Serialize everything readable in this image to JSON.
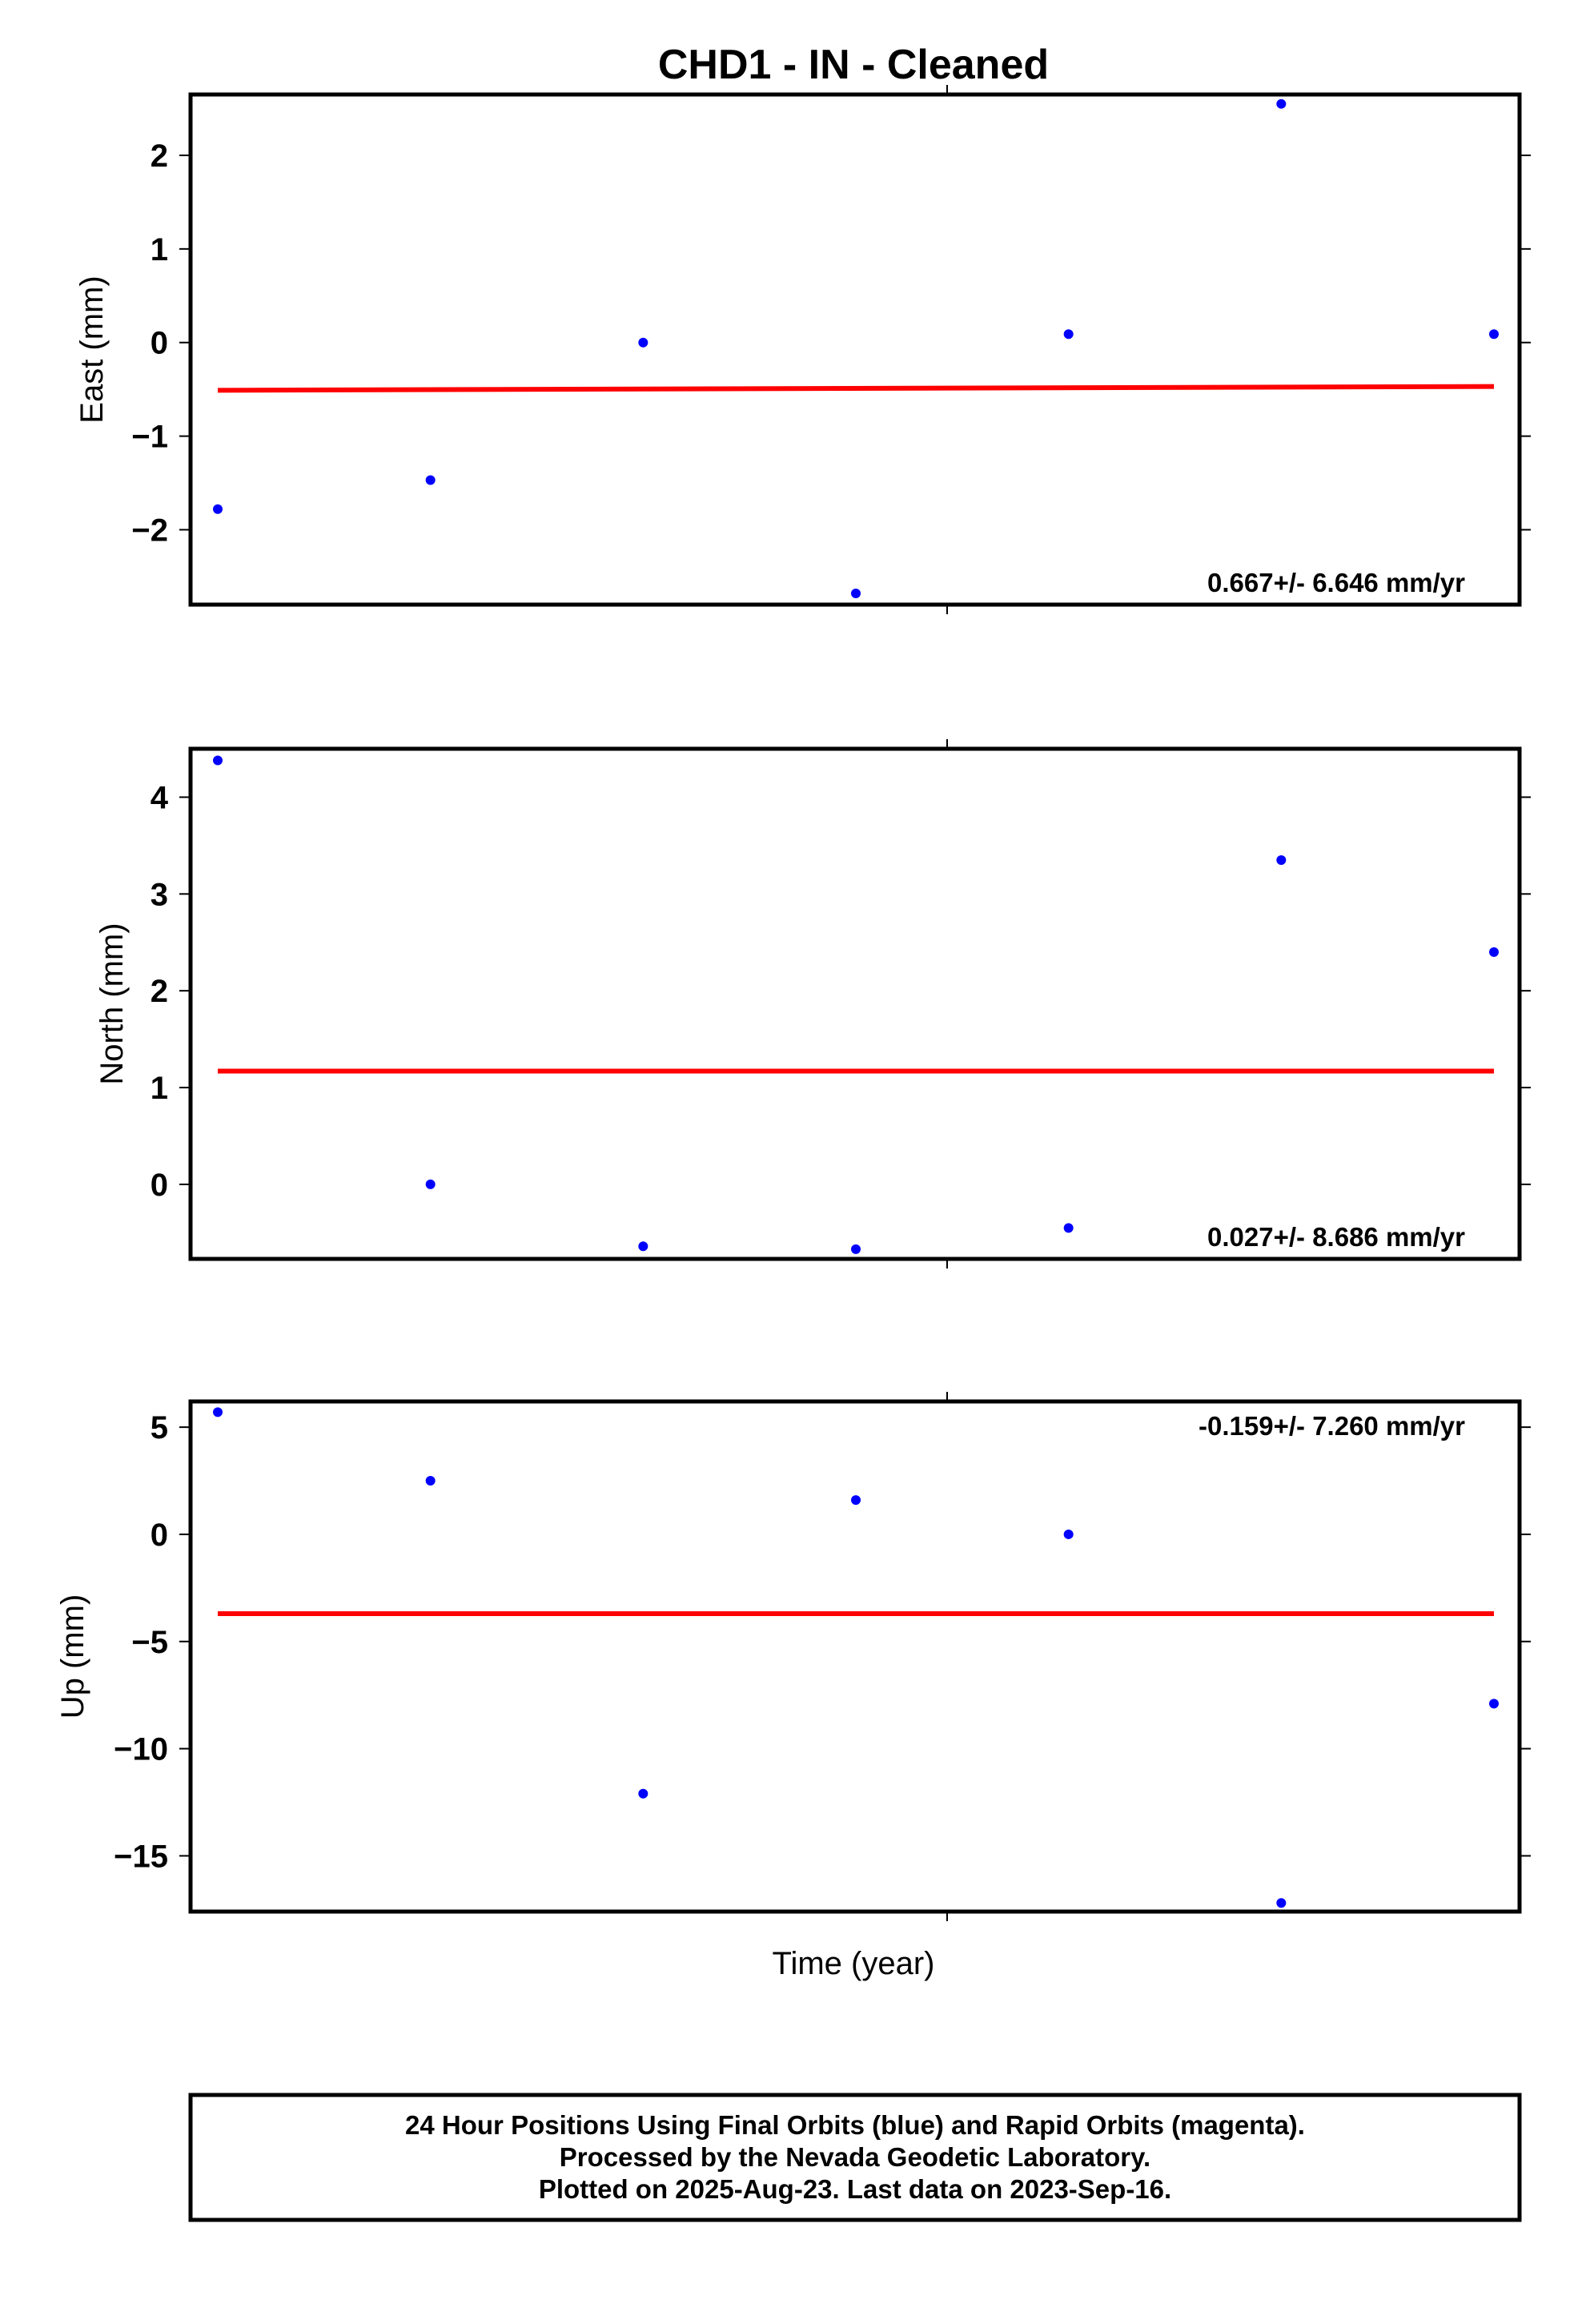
{
  "title": "CHD1  - IN - Cleaned",
  "xlabel": "Time (year)",
  "caption": {
    "line1": "24 Hour Positions Using Final Orbits (blue) and Rapid Orbits (magenta).",
    "line2": "Processed by the Nevada Geodetic Laboratory.",
    "line3": "Plotted on 2025-Aug-23. Last data on 2023-Sep-16."
  },
  "colors": {
    "points": "#0000ff",
    "fit": "#ff0000",
    "frame": "#000000"
  },
  "chart_data": [
    {
      "type": "scatter",
      "ylabel": "East (mm)",
      "rate_label": "0.667+/- 6.646 mm/yr",
      "rate_position": "bottom-right",
      "ylim": [
        -2.8,
        2.65
      ],
      "yticks": [
        -2,
        -1,
        0,
        1,
        2
      ],
      "ytick_labels": [
        "−2",
        "−1",
        "0",
        "1",
        "2"
      ],
      "x": [
        0,
        1,
        2,
        3,
        4,
        5,
        6
      ],
      "y": [
        -1.78,
        -1.47,
        0.0,
        -2.68,
        0.09,
        2.55,
        0.09
      ],
      "fit": {
        "y_start": -0.51,
        "y_end": -0.47
      }
    },
    {
      "type": "scatter",
      "ylabel": "North (mm)",
      "rate_label": "0.027+/- 8.686 mm/yr",
      "rate_position": "bottom-right",
      "ylim": [
        -0.77,
        4.5
      ],
      "yticks": [
        0,
        1,
        2,
        3,
        4
      ],
      "ytick_labels": [
        "0",
        "1",
        "2",
        "3",
        "4"
      ],
      "x": [
        0,
        1,
        2,
        3,
        4,
        5,
        6
      ],
      "y": [
        4.38,
        0.0,
        -0.64,
        -0.67,
        -0.45,
        3.35,
        2.4
      ],
      "fit": {
        "y_start": 1.17,
        "y_end": 1.17
      }
    },
    {
      "type": "scatter",
      "ylabel": "Up (mm)",
      "rate_label": "-0.159+/- 7.260 mm/yr",
      "rate_position": "top-right",
      "ylim": [
        -17.6,
        6.2
      ],
      "yticks": [
        -15,
        -10,
        -5,
        0,
        5
      ],
      "ytick_labels": [
        "−15",
        "−10",
        "−5",
        "0",
        "5"
      ],
      "x": [
        0,
        1,
        2,
        3,
        4,
        5,
        6
      ],
      "y": [
        5.7,
        2.5,
        -12.1,
        1.6,
        0.0,
        -17.2,
        -7.9
      ],
      "fit": {
        "y_start": -3.7,
        "y_end": -3.7
      }
    }
  ]
}
